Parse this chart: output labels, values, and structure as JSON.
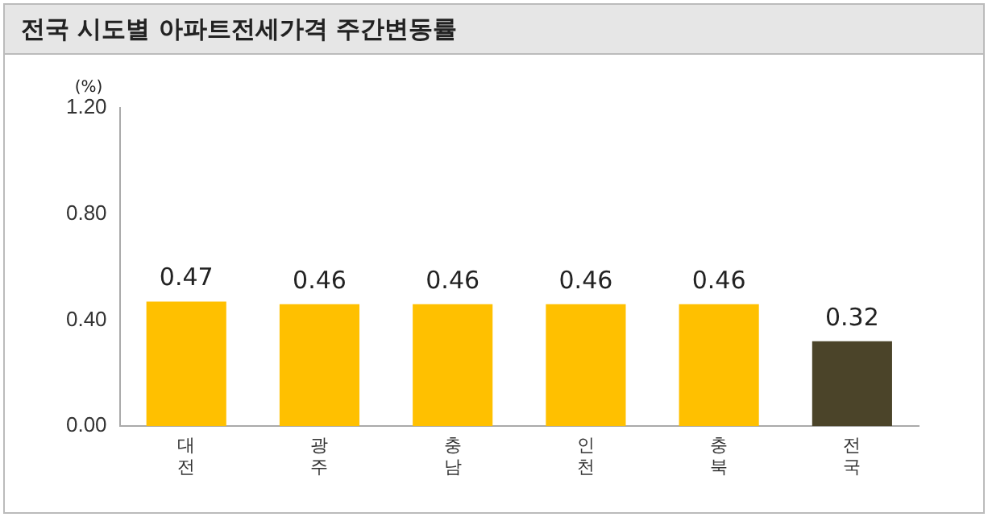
{
  "chart_data": {
    "type": "bar",
    "title": "전국 시도별 아파트전세가격 주간변동률",
    "ylabel": "(%)",
    "categories": [
      "대전",
      "광주",
      "충남",
      "인천",
      "충북",
      "전국"
    ],
    "values": [
      0.47,
      0.46,
      0.46,
      0.46,
      0.46,
      0.32
    ],
    "colors": [
      "#ffc000",
      "#ffc000",
      "#ffc000",
      "#ffc000",
      "#ffc000",
      "#4b4429"
    ],
    "ylim": [
      0,
      1.2
    ],
    "yticks": [
      {
        "value": 0,
        "label": "0.00"
      },
      {
        "value": 0.4,
        "label": "0.40"
      },
      {
        "value": 0.8,
        "label": "0.80"
      },
      {
        "value": 1.2,
        "label": "1.20"
      }
    ],
    "grid": false,
    "legend": false,
    "data_labels": true
  }
}
